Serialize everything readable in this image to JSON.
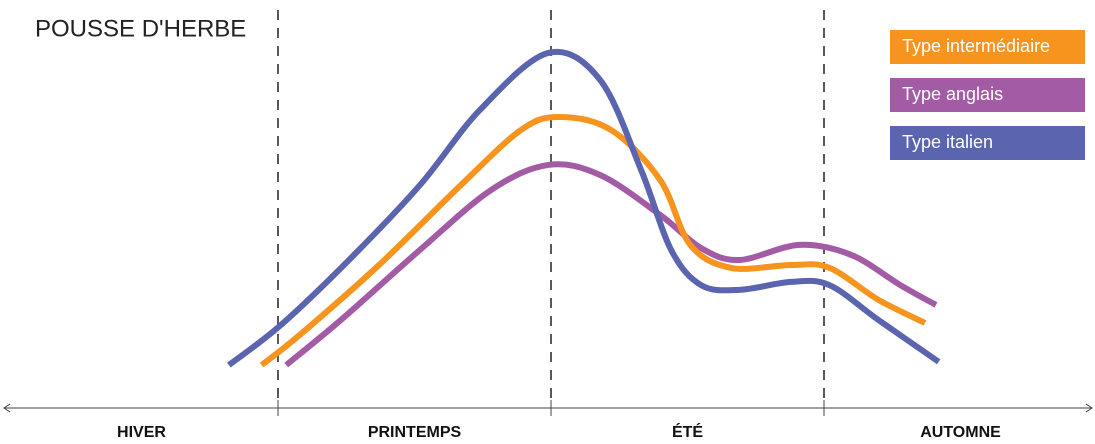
{
  "chart_data": {
    "type": "line",
    "title": "POUSSE D'HERBE",
    "categories": [
      "HIVER",
      "PRINTEMPS",
      "ÉTÉ",
      "AUTOMNE"
    ],
    "xlim": [
      0,
      4
    ],
    "ylim": [
      0,
      100
    ],
    "series": [
      {
        "name": "Type intermédiaire",
        "color": "#f7941d",
        "x": [
          0.94,
          1.08,
          1.37,
          1.67,
          1.89,
          2.03,
          2.22,
          2.4,
          2.51,
          2.66,
          2.88,
          3.02,
          3.2,
          3.37
        ],
        "values": [
          9.7,
          18.1,
          37.5,
          59.7,
          75,
          78.6,
          75,
          61.1,
          43.1,
          36.7,
          37.5,
          36.7,
          27.8,
          21.4
        ]
      },
      {
        "name": "Type anglais",
        "color": "#a35ba5",
        "x": [
          1.03,
          1.23,
          1.52,
          1.78,
          1.99,
          2.18,
          2.4,
          2.55,
          2.69,
          2.91,
          3.1,
          3.28,
          3.41
        ],
        "values": [
          9.7,
          22.2,
          41.7,
          58.3,
          65.3,
          62.5,
          51.4,
          42.2,
          38.9,
          43.1,
          40.3,
          31.9,
          26.4
        ]
      },
      {
        "name": "Type italien",
        "color": "#5b64ae",
        "x": [
          0.82,
          1.01,
          1.26,
          1.52,
          1.74,
          1.99,
          2.18,
          2.33,
          2.44,
          2.55,
          2.69,
          2.88,
          3.02,
          3.2,
          3.42
        ],
        "values": [
          9.7,
          20.8,
          38.9,
          59.7,
          80.6,
          96.4,
          88.9,
          63.9,
          41.7,
          31.9,
          30.6,
          32.8,
          31.9,
          22.2,
          10.6
        ]
      }
    ]
  }
}
